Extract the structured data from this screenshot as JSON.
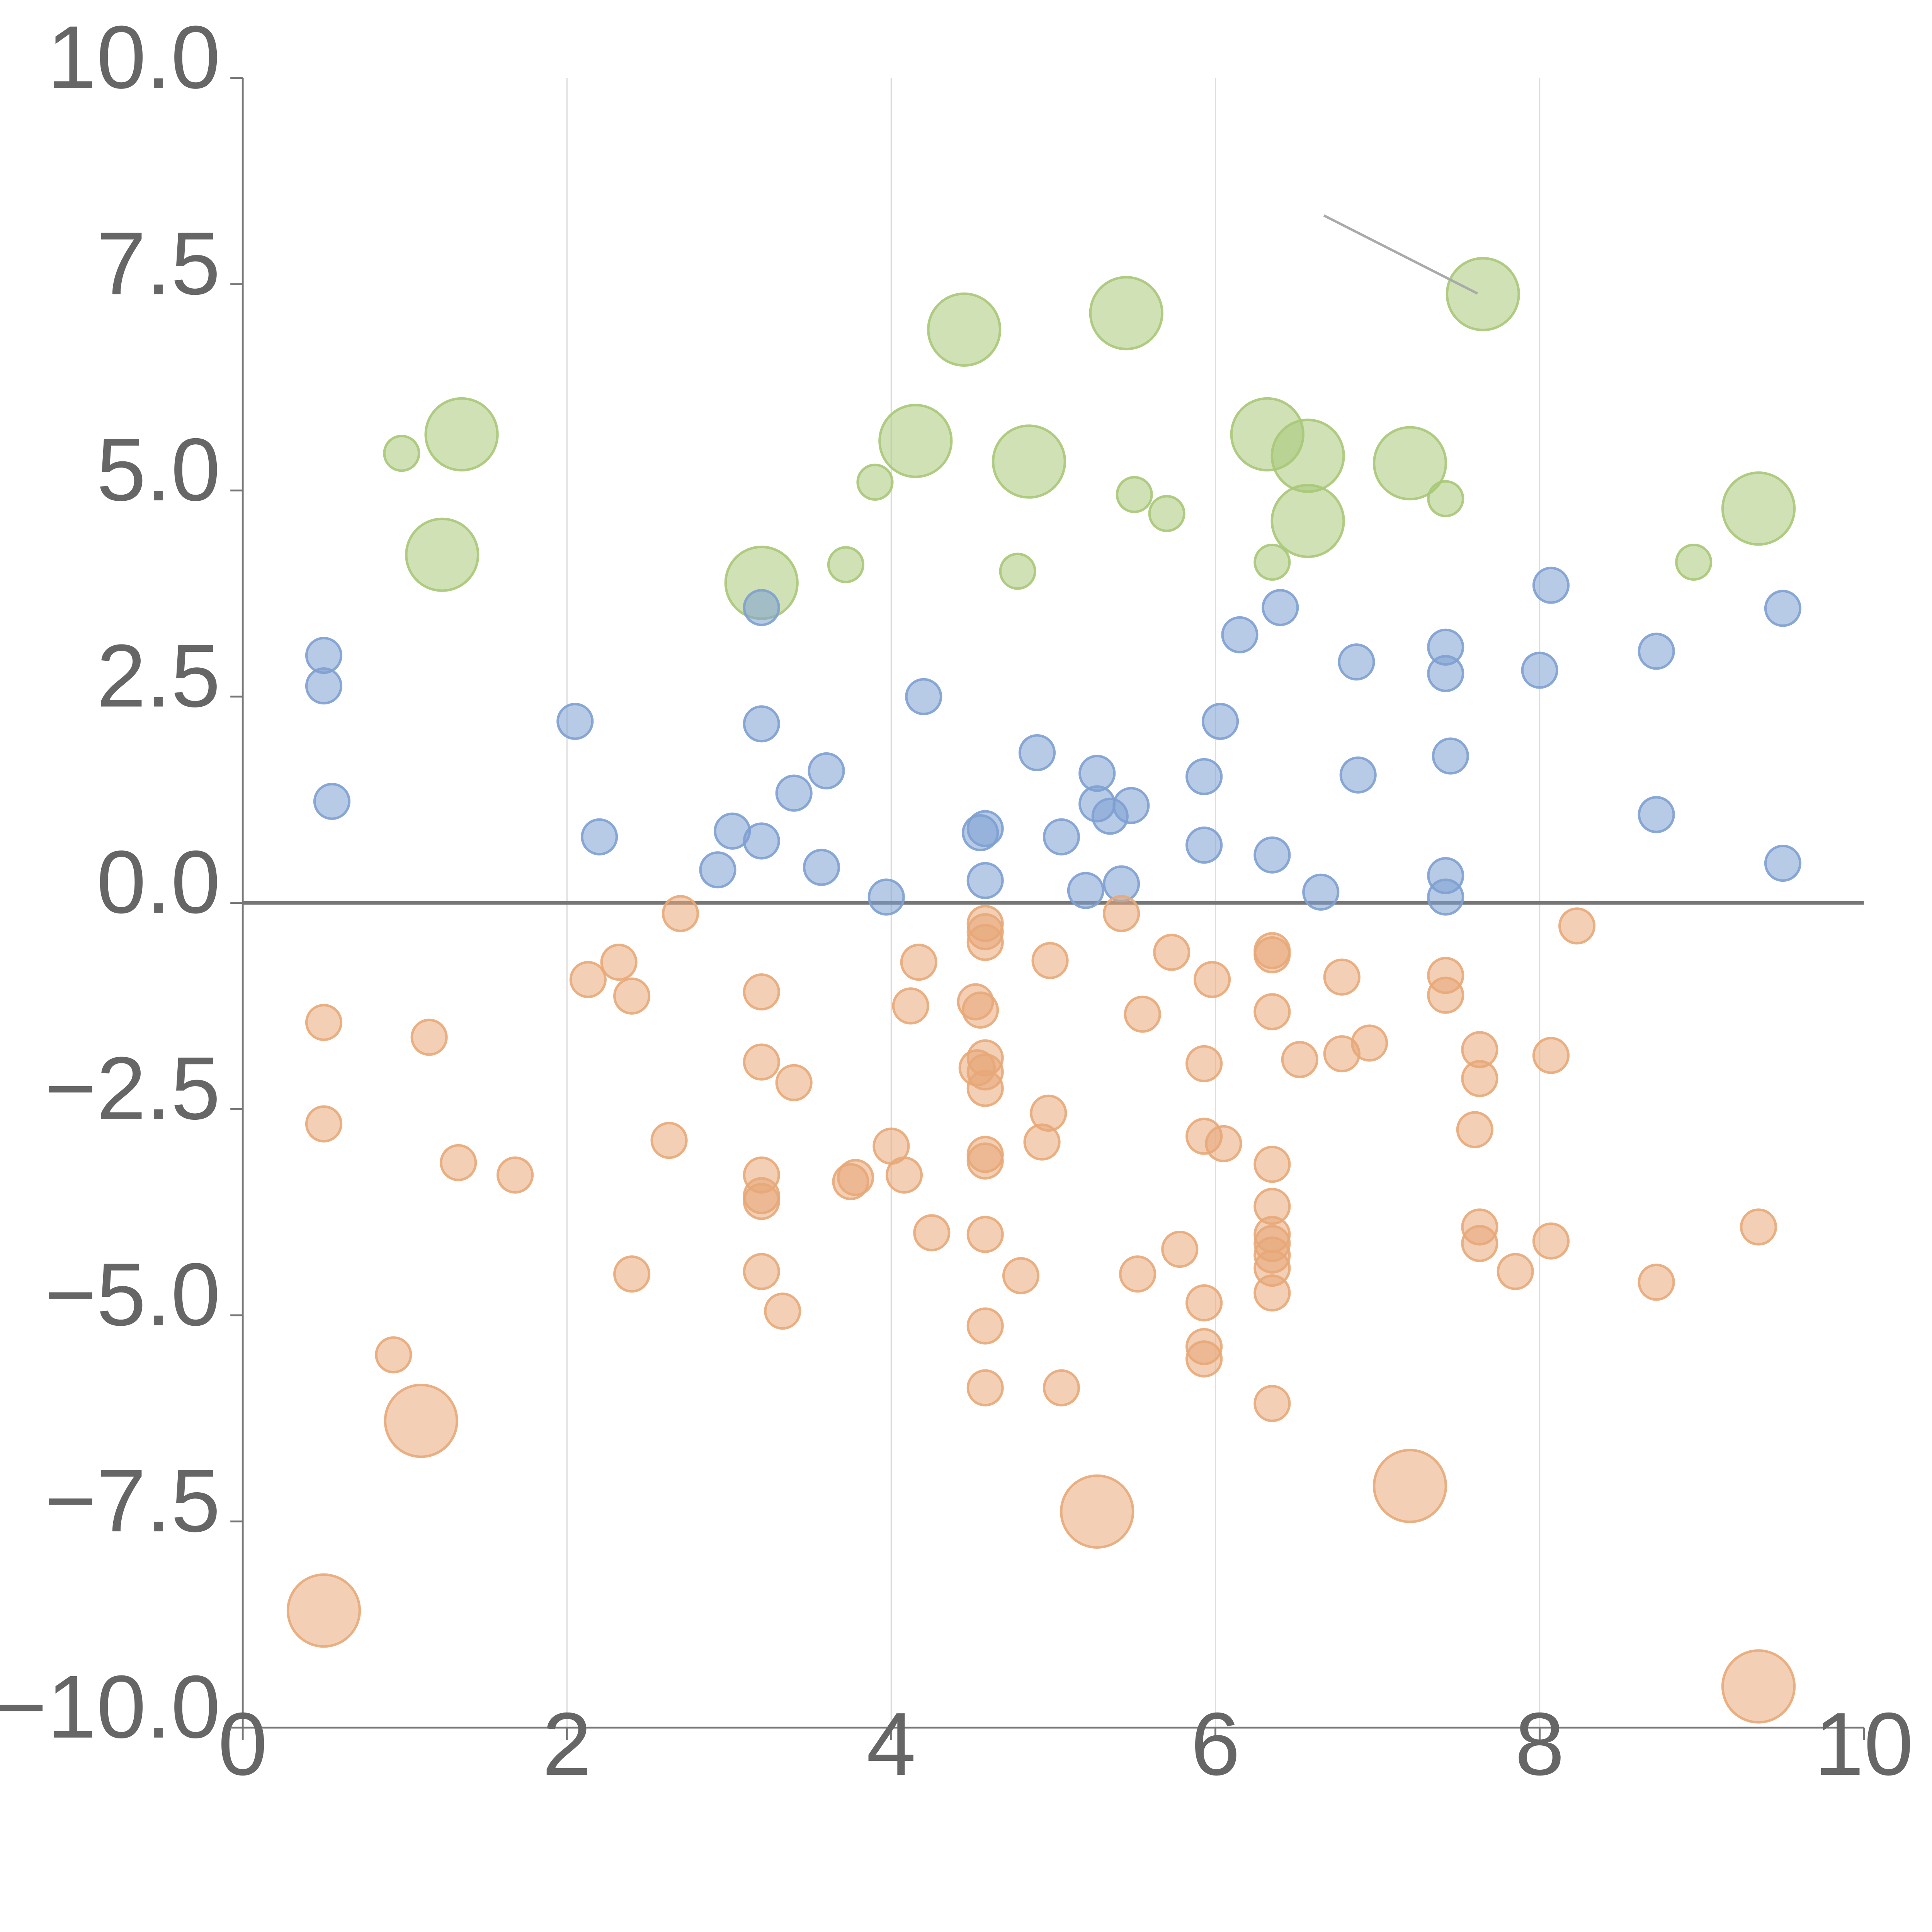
{
  "chart_data": {
    "type": "scatter",
    "title": "",
    "xlabel": "",
    "ylabel": "",
    "xlim": [
      0,
      10
    ],
    "ylim": [
      -10,
      10
    ],
    "grid": "vertical",
    "zero_line": 0,
    "x_ticks": [
      0,
      2,
      4,
      6,
      8,
      10
    ],
    "x_tick_labels": [
      "0",
      "2",
      "4",
      "6",
      "8",
      "10"
    ],
    "y_ticks": [
      10,
      7.5,
      5,
      2.5,
      0,
      -2.5,
      -5,
      -7.5,
      -10
    ],
    "y_tick_labels": [
      "10.0",
      "7.5",
      "5.0",
      "2.5",
      "0.0",
      "−2.5",
      "−5.0",
      "−7.5",
      "−10.0"
    ],
    "series": [
      {
        "name": "green",
        "color": "#a8c878",
        "points": [
          [
            0.98,
            5.45,
            "small"
          ],
          [
            1.35,
            5.68,
            "large"
          ],
          [
            1.23,
            4.22,
            "large"
          ],
          [
            3.2,
            3.88,
            "large"
          ],
          [
            3.72,
            4.1,
            "small"
          ],
          [
            3.9,
            5.1,
            "small"
          ],
          [
            4.15,
            5.6,
            "large"
          ],
          [
            4.45,
            6.95,
            "large"
          ],
          [
            4.78,
            4.02,
            "small"
          ],
          [
            4.85,
            5.35,
            "large"
          ],
          [
            5.45,
            7.15,
            "large"
          ],
          [
            5.5,
            4.95,
            "small"
          ],
          [
            5.7,
            4.72,
            "small"
          ],
          [
            6.32,
            5.68,
            "large"
          ],
          [
            6.35,
            4.13,
            "small"
          ],
          [
            6.57,
            5.42,
            "large"
          ],
          [
            6.57,
            4.63,
            "large"
          ],
          [
            7.2,
            5.33,
            "large"
          ],
          [
            7.42,
            4.9,
            "small"
          ],
          [
            7.65,
            7.38,
            "large"
          ],
          [
            8.95,
            4.13,
            "small"
          ],
          [
            9.35,
            4.78,
            "large"
          ]
        ]
      },
      {
        "name": "blue",
        "color": "#7ea0d2",
        "points": [
          [
            0.5,
            3.0,
            "small"
          ],
          [
            0.5,
            2.63,
            "small"
          ],
          [
            0.55,
            1.23,
            "small"
          ],
          [
            2.05,
            2.2,
            "small"
          ],
          [
            2.2,
            0.8,
            "small"
          ],
          [
            2.93,
            0.4,
            "small"
          ],
          [
            3.02,
            0.87,
            "small"
          ],
          [
            3.2,
            3.58,
            "small"
          ],
          [
            3.2,
            2.17,
            "small"
          ],
          [
            3.2,
            0.75,
            "small"
          ],
          [
            3.4,
            1.33,
            "small"
          ],
          [
            3.57,
            0.43,
            "small"
          ],
          [
            3.6,
            1.6,
            "small"
          ],
          [
            3.97,
            0.07,
            "small"
          ],
          [
            4.2,
            2.5,
            "small"
          ],
          [
            4.55,
            0.85,
            "small"
          ],
          [
            4.58,
            0.9,
            "small"
          ],
          [
            4.58,
            0.27,
            "small"
          ],
          [
            4.9,
            1.82,
            "small"
          ],
          [
            5.05,
            0.8,
            "small"
          ],
          [
            5.2,
            0.15,
            "small"
          ],
          [
            5.27,
            1.57,
            "small"
          ],
          [
            5.27,
            1.2,
            "small"
          ],
          [
            5.35,
            1.05,
            "small"
          ],
          [
            5.42,
            0.23,
            "small"
          ],
          [
            5.48,
            1.18,
            "small"
          ],
          [
            5.93,
            1.53,
            "small"
          ],
          [
            5.93,
            0.7,
            "small"
          ],
          [
            6.03,
            2.2,
            "small"
          ],
          [
            6.15,
            3.25,
            "small"
          ],
          [
            6.4,
            3.58,
            "small"
          ],
          [
            6.35,
            0.58,
            "small"
          ],
          [
            6.65,
            0.13,
            "small"
          ],
          [
            6.87,
            2.92,
            "small"
          ],
          [
            6.88,
            1.55,
            "small"
          ],
          [
            7.42,
            3.1,
            "small"
          ],
          [
            7.42,
            2.78,
            "small"
          ],
          [
            7.45,
            1.78,
            "small"
          ],
          [
            7.42,
            0.33,
            "small"
          ],
          [
            7.42,
            0.07,
            "small"
          ],
          [
            8.0,
            2.82,
            "small"
          ],
          [
            8.07,
            3.85,
            "small"
          ],
          [
            8.72,
            3.05,
            "small"
          ],
          [
            8.72,
            1.07,
            "small"
          ],
          [
            9.5,
            3.57,
            "small"
          ],
          [
            9.5,
            0.48,
            "small"
          ]
        ]
      },
      {
        "name": "orange",
        "color": "#e8a878",
        "points": [
          [
            0.5,
            -1.45,
            "small"
          ],
          [
            0.5,
            -2.68,
            "small"
          ],
          [
            0.5,
            -8.58,
            "large"
          ],
          [
            0.93,
            -5.48,
            "small"
          ],
          [
            1.1,
            -6.28,
            "large"
          ],
          [
            1.15,
            -1.63,
            "small"
          ],
          [
            1.33,
            -3.15,
            "small"
          ],
          [
            1.68,
            -3.3,
            "small"
          ],
          [
            2.13,
            -0.93,
            "small"
          ],
          [
            2.32,
            -0.72,
            "small"
          ],
          [
            2.4,
            -1.13,
            "small"
          ],
          [
            2.4,
            -4.5,
            "small"
          ],
          [
            2.63,
            -2.88,
            "small"
          ],
          [
            2.7,
            -0.13,
            "small"
          ],
          [
            3.2,
            -1.08,
            "small"
          ],
          [
            3.2,
            -1.93,
            "small"
          ],
          [
            3.2,
            -3.3,
            "small"
          ],
          [
            3.2,
            -3.55,
            "small"
          ],
          [
            3.2,
            -3.62,
            "small"
          ],
          [
            3.2,
            -4.47,
            "small"
          ],
          [
            3.33,
            -4.95,
            "small"
          ],
          [
            3.4,
            -2.18,
            "small"
          ],
          [
            3.75,
            -3.38,
            "small"
          ],
          [
            3.78,
            -3.33,
            "small"
          ],
          [
            4.0,
            -2.95,
            "small"
          ],
          [
            4.08,
            -3.3,
            "small"
          ],
          [
            4.12,
            -1.25,
            "small"
          ],
          [
            4.17,
            -0.72,
            "small"
          ],
          [
            4.25,
            -4.0,
            "small"
          ],
          [
            4.52,
            -1.2,
            "small"
          ],
          [
            4.53,
            -2.0,
            "small"
          ],
          [
            4.55,
            -1.3,
            "small"
          ],
          [
            4.58,
            -0.25,
            "small"
          ],
          [
            4.58,
            -0.35,
            "small"
          ],
          [
            4.58,
            -0.48,
            "small"
          ],
          [
            4.58,
            -1.88,
            "small"
          ],
          [
            4.58,
            -2.05,
            "small"
          ],
          [
            4.58,
            -2.25,
            "small"
          ],
          [
            4.58,
            -3.05,
            "small"
          ],
          [
            4.58,
            -3.13,
            "small"
          ],
          [
            4.58,
            -4.02,
            "small"
          ],
          [
            4.58,
            -5.13,
            "small"
          ],
          [
            4.58,
            -5.88,
            "small"
          ],
          [
            4.8,
            -4.52,
            "small"
          ],
          [
            4.93,
            -2.9,
            "small"
          ],
          [
            4.97,
            -2.55,
            "small"
          ],
          [
            4.98,
            -0.7,
            "small"
          ],
          [
            5.05,
            -5.88,
            "small"
          ],
          [
            5.27,
            -7.38,
            "large"
          ],
          [
            5.42,
            -0.13,
            "small"
          ],
          [
            5.52,
            -4.5,
            "small"
          ],
          [
            5.55,
            -1.35,
            "small"
          ],
          [
            5.73,
            -0.6,
            "small"
          ],
          [
            5.78,
            -4.2,
            "small"
          ],
          [
            5.93,
            -1.95,
            "small"
          ],
          [
            5.93,
            -2.83,
            "small"
          ],
          [
            5.93,
            -4.85,
            "small"
          ],
          [
            5.93,
            -5.38,
            "small"
          ],
          [
            5.93,
            -5.53,
            "small"
          ],
          [
            5.98,
            -0.93,
            "small"
          ],
          [
            6.05,
            -2.92,
            "small"
          ],
          [
            6.35,
            -0.58,
            "small"
          ],
          [
            6.35,
            -0.63,
            "small"
          ],
          [
            6.35,
            -1.32,
            "small"
          ],
          [
            6.35,
            -3.17,
            "small"
          ],
          [
            6.35,
            -3.68,
            "small"
          ],
          [
            6.35,
            -4.02,
            "small"
          ],
          [
            6.35,
            -4.13,
            "small"
          ],
          [
            6.35,
            -4.27,
            "small"
          ],
          [
            6.35,
            -4.43,
            "small"
          ],
          [
            6.35,
            -4.73,
            "small"
          ],
          [
            6.35,
            -6.07,
            "small"
          ],
          [
            6.52,
            -1.9,
            "small"
          ],
          [
            6.78,
            -1.83,
            "small"
          ],
          [
            6.78,
            -0.9,
            "small"
          ],
          [
            6.95,
            -1.7,
            "small"
          ],
          [
            7.2,
            -7.07,
            "large"
          ],
          [
            7.42,
            -0.88,
            "small"
          ],
          [
            7.42,
            -1.12,
            "small"
          ],
          [
            7.6,
            -2.75,
            "small"
          ],
          [
            7.63,
            -1.78,
            "small"
          ],
          [
            7.63,
            -2.13,
            "small"
          ],
          [
            7.63,
            -3.93,
            "small"
          ],
          [
            7.63,
            -4.13,
            "small"
          ],
          [
            7.85,
            -4.47,
            "small"
          ],
          [
            8.07,
            -1.85,
            "small"
          ],
          [
            8.07,
            -4.1,
            "small"
          ],
          [
            8.23,
            -0.28,
            "small"
          ],
          [
            8.72,
            -4.6,
            "small"
          ],
          [
            9.35,
            -3.93,
            "small"
          ],
          [
            9.35,
            -9.5,
            "large"
          ]
        ]
      }
    ]
  }
}
